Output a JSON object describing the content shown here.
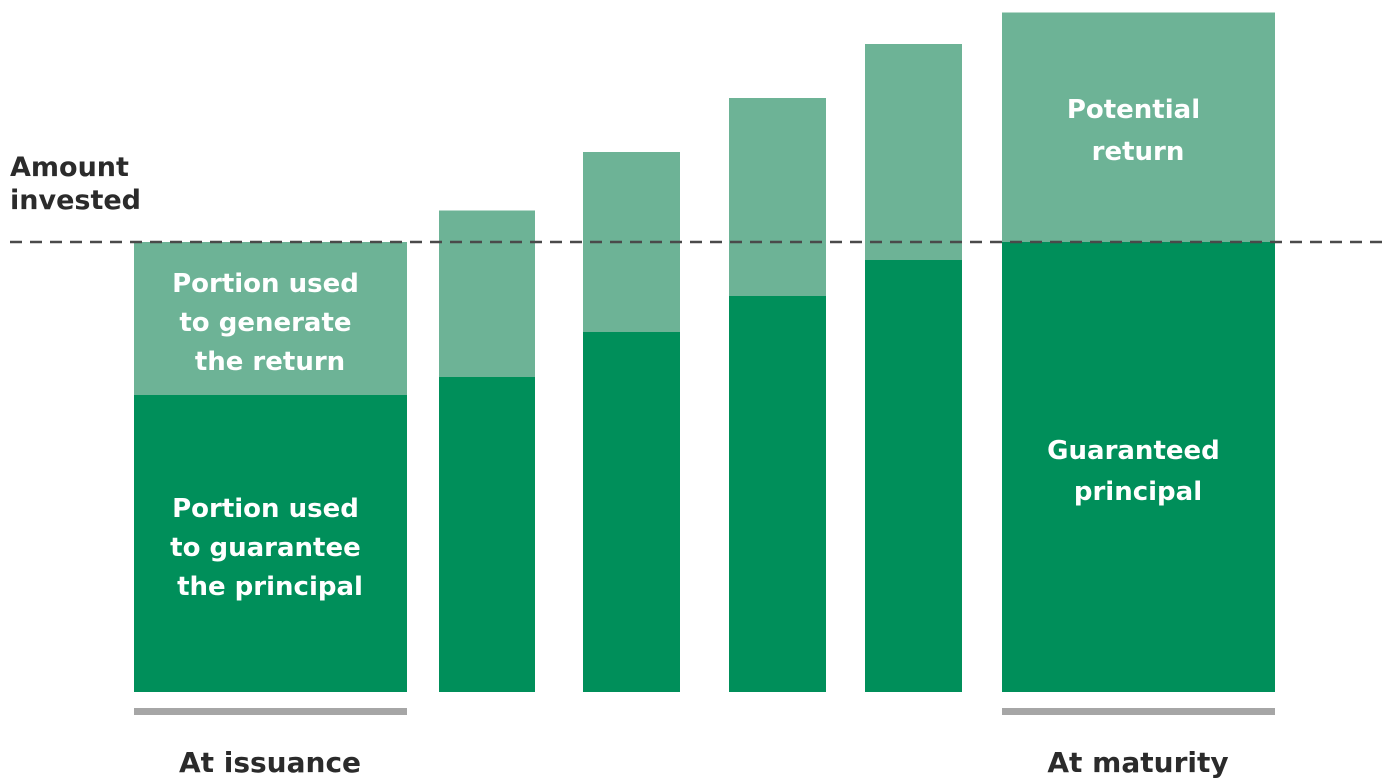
{
  "amount_label": [
    "Amount",
    "invested"
  ],
  "colors": {
    "principal": "#008f5a",
    "return": "#6db396",
    "baseline": "#a6a6a6",
    "dashed_line": "#4a4a4a",
    "text_dark": "#2b2b2b"
  },
  "chart_data": {
    "type": "bar",
    "stacked": true,
    "amount_invested": 100,
    "ylim": [
      0,
      155
    ],
    "bars": [
      {
        "guaranteed": 66,
        "return_portion": 34
      },
      {
        "guaranteed": 70,
        "return_portion": 37
      },
      {
        "guaranteed": 80,
        "return_portion": 40
      },
      {
        "guaranteed": 88,
        "return_portion": 44
      },
      {
        "guaranteed": 96,
        "return_portion": 48
      },
      {
        "guaranteed": 100,
        "return_portion": 51
      }
    ]
  },
  "segment_labels": {
    "issuance_return": [
      "Portion used",
      "to generate",
      "the return"
    ],
    "issuance_principal": [
      "Portion used",
      "to guarantee",
      "the principal"
    ],
    "maturity_return": [
      "Potential",
      "return"
    ],
    "maturity_principal": [
      "Guaranteed",
      "principal"
    ]
  },
  "bottom_labels": {
    "issuance": "At issuance",
    "maturity": "At maturity"
  }
}
